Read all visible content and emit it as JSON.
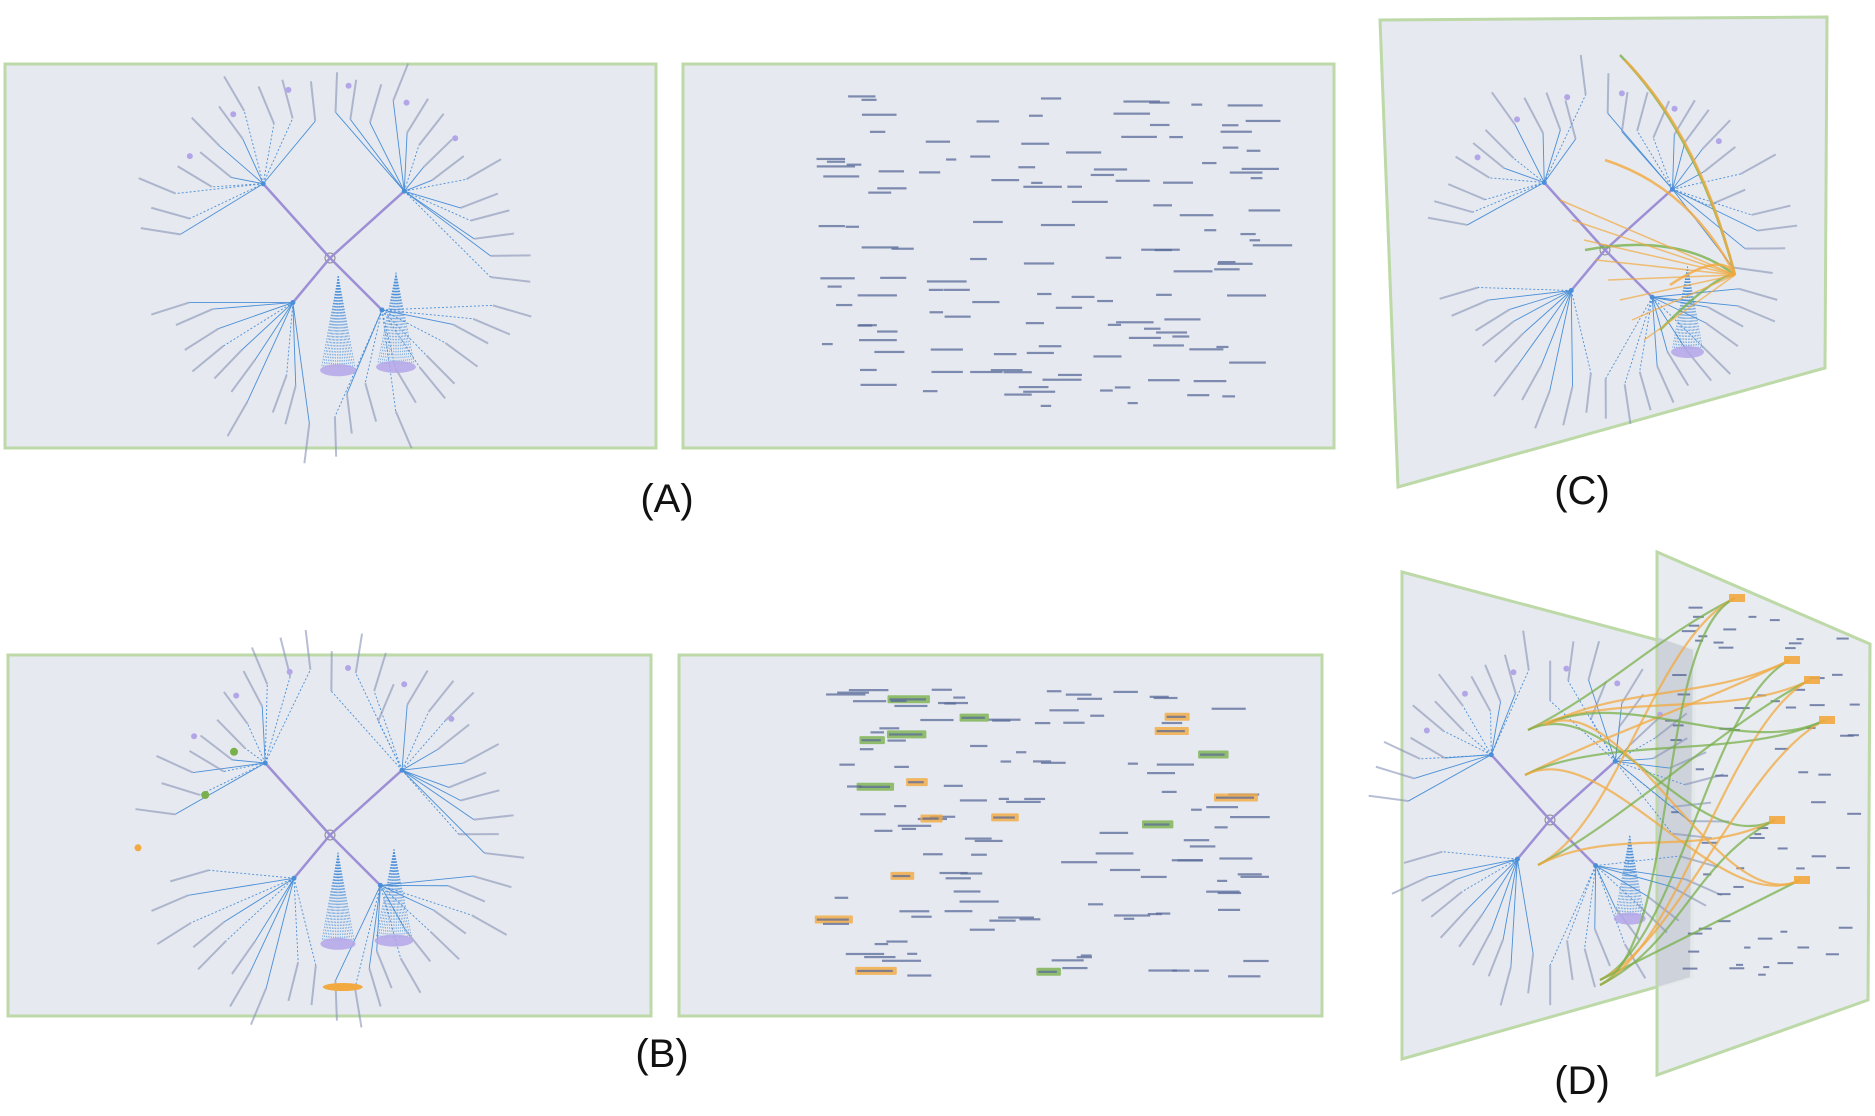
{
  "figure": {
    "captions": [
      "(A)",
      "(B)",
      "(C)",
      "(D)"
    ],
    "panels": [
      {
        "id": "A",
        "views": [
          "radial-tree",
          "word-cloud"
        ],
        "highlights": false
      },
      {
        "id": "B",
        "views": [
          "radial-tree",
          "word-cloud"
        ],
        "highlights": true
      },
      {
        "id": "C",
        "views": [
          "radial-tree-plane"
        ],
        "links": "intra-plane"
      },
      {
        "id": "D",
        "views": [
          "radial-tree-plane",
          "word-cloud-plane"
        ],
        "links": "inter-plane"
      }
    ],
    "colors": {
      "panel_fill": "#e6e9ef",
      "panel_border": "#bcd9a7",
      "tree_edge": "#4a8fd8",
      "tree_core": "#9d8fd6",
      "leaf_fan": "#b3a6e8",
      "label_text": "#5a6a9a",
      "highlight_orange": "#f2a93f",
      "highlight_green": "#7ab04c"
    }
  }
}
